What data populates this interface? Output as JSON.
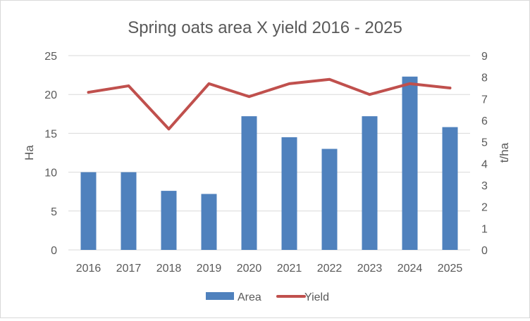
{
  "chart_data": {
    "type": "bar",
    "title": "Spring oats area X yield 2016 - 2025",
    "categories": [
      "2016",
      "2017",
      "2018",
      "2019",
      "2020",
      "2021",
      "2022",
      "2023",
      "2024",
      "2025"
    ],
    "series": [
      {
        "name": "Area",
        "type": "bar",
        "axis": "left",
        "color": "#4f81bd",
        "values": [
          10.0,
          10.0,
          7.6,
          7.2,
          17.2,
          14.5,
          13.0,
          17.2,
          22.3,
          15.8
        ]
      },
      {
        "name": "Yield",
        "type": "line",
        "axis": "right",
        "color": "#c0504d",
        "values": [
          7.3,
          7.6,
          5.6,
          7.7,
          7.1,
          7.7,
          7.9,
          7.2,
          7.7,
          7.5
        ]
      }
    ],
    "ylabel": "Ha",
    "y2label": "t/ha",
    "ylim": [
      0,
      25
    ],
    "yticks": [
      0,
      5,
      10,
      15,
      20,
      25
    ],
    "y2lim": [
      0,
      9
    ],
    "y2ticks": [
      0,
      1,
      2,
      3,
      4,
      5,
      6,
      7,
      8,
      9
    ],
    "grid": true,
    "legend_position": "bottom"
  }
}
